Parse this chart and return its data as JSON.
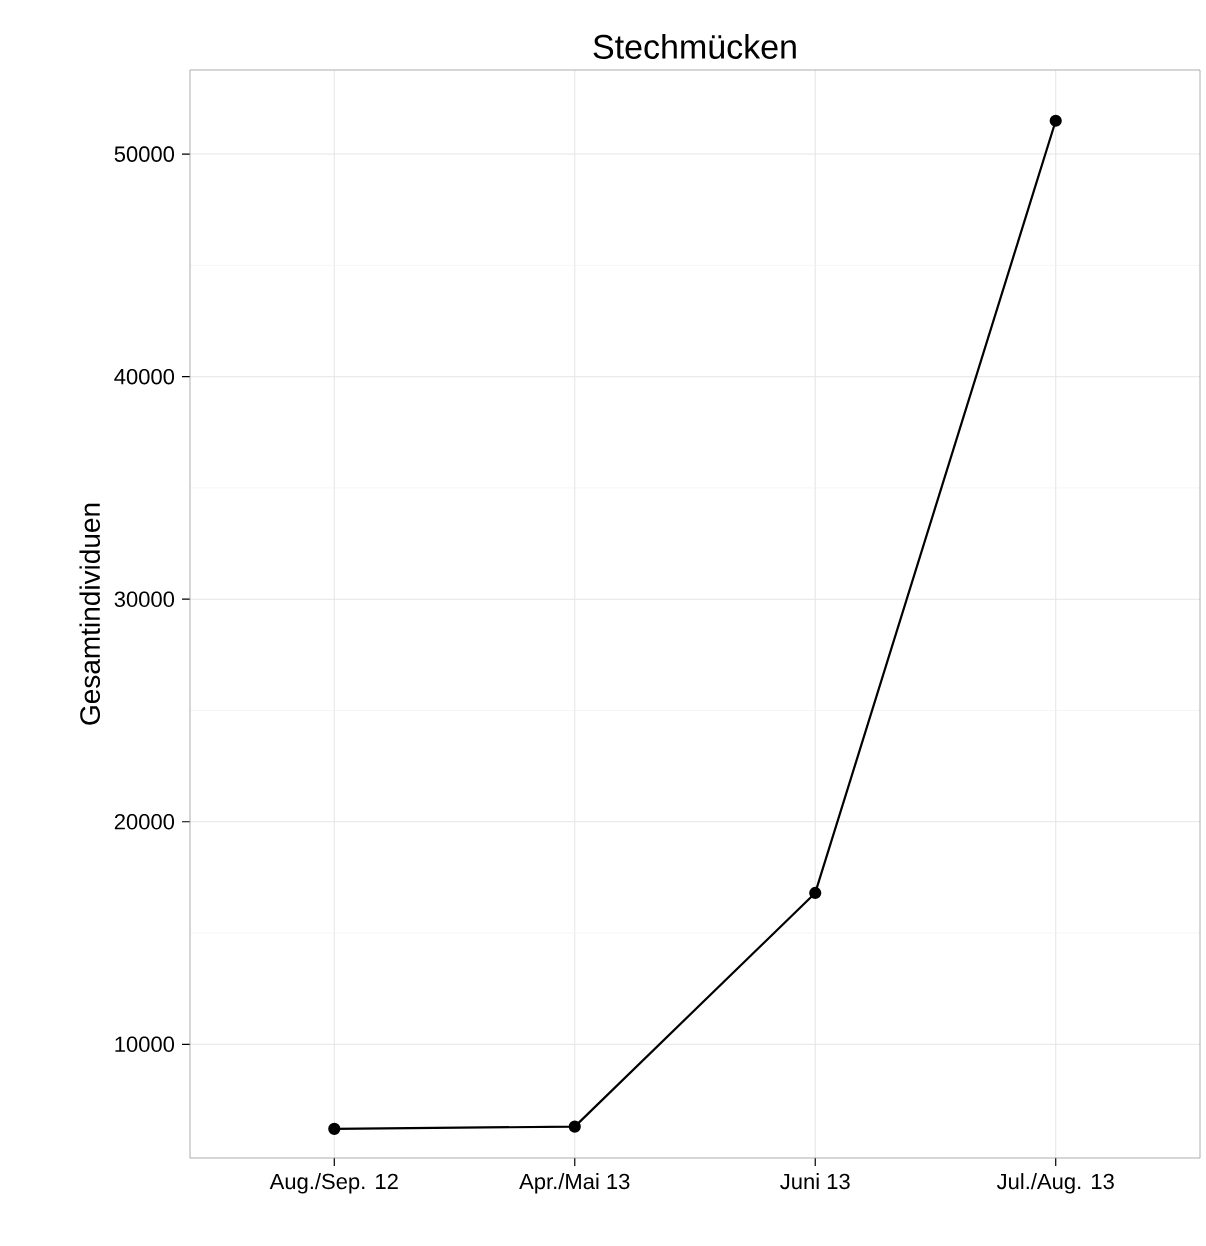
{
  "chart_data": {
    "type": "line",
    "title": "Stechmücken",
    "ylabel": "Gesamtindividuen",
    "categories": [
      "Aug./Sep. 12",
      "Apr./Mai 13",
      "Juni 13",
      "Jul./Aug. 13"
    ],
    "values": [
      6200,
      6300,
      16800,
      51500
    ],
    "color": "#000000",
    "marker": "circle",
    "line_style": "solid",
    "ylim": [
      4890,
      53780
    ],
    "yticks": [
      10000,
      20000,
      30000,
      40000,
      50000
    ],
    "grid": true
  }
}
